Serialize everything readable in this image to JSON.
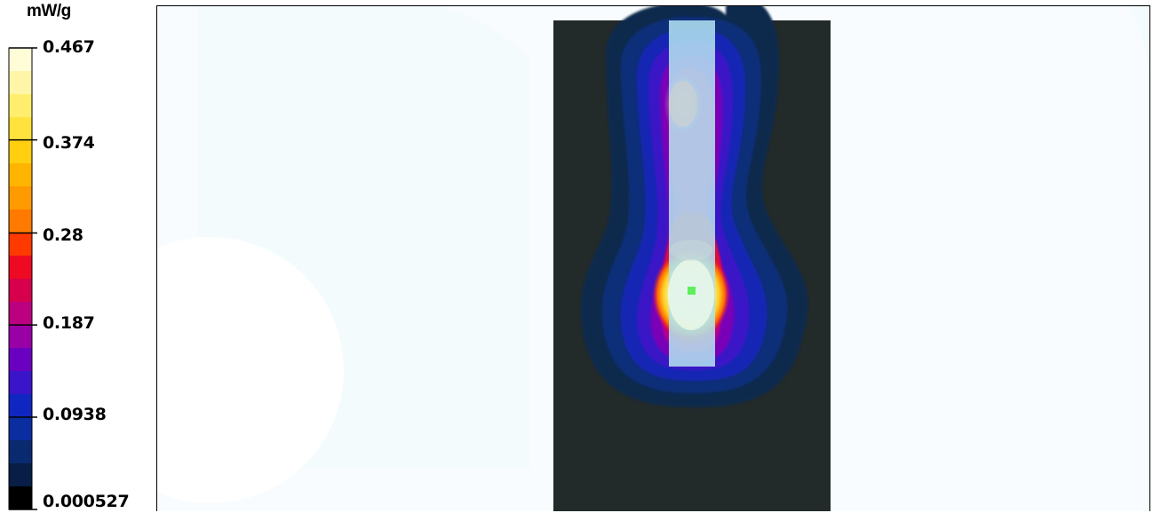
{
  "chart_data": {
    "type": "heatmap",
    "title": "",
    "colorbar": {
      "unit": "mW/g",
      "tick_labels": [
        "0.467",
        "0.374",
        "0.28",
        "0.187",
        "0.0938",
        "0.000527"
      ],
      "tick_values": [
        0.467,
        0.374,
        0.28,
        0.187,
        0.0938,
        0.000527
      ],
      "min": 0.000527,
      "max": 0.467,
      "bands_top_to_bottom": [
        "#fffcd8",
        "#fff5a8",
        "#ffee6e",
        "#ffe23c",
        "#ffcf10",
        "#ffb400",
        "#ff9a00",
        "#ff7a00",
        "#ff3a00",
        "#ee0a22",
        "#d6004c",
        "#bb0080",
        "#9900a6",
        "#6a00c0",
        "#3a14c8",
        "#1026c0",
        "#0a2ea0",
        "#0a2a70",
        "#081e46",
        "#000000"
      ]
    },
    "field": {
      "background_color": "#f8fcfe",
      "phantom_color": "#232a2a",
      "probe_color": "#b0e0f0",
      "peak_marker_color": "#5cf05c",
      "peak_value": 0.467
    }
  }
}
